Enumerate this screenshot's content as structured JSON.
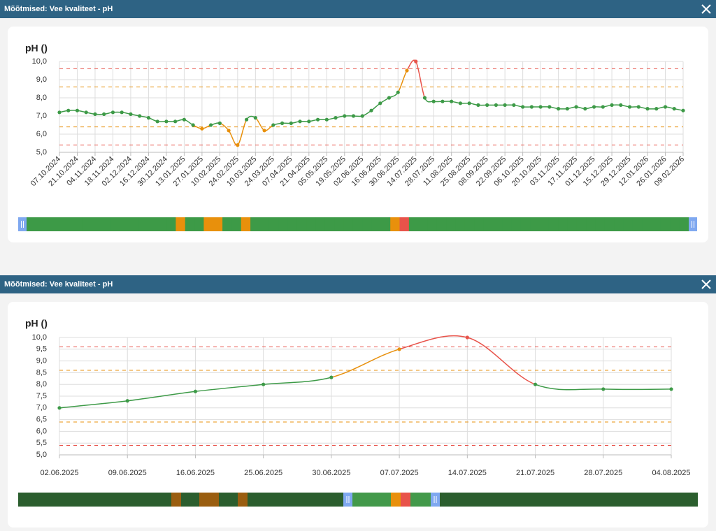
{
  "windows": [
    {
      "title": "Mõõtmised: Vee kvaliteet - pH"
    },
    {
      "title": "Mõõtmised: Vee kvaliteet - pH"
    }
  ],
  "chart_data": [
    {
      "type": "line",
      "title": "pH ()",
      "categories": [
        "07.10.2024",
        null,
        "21.10.2024",
        null,
        "04.11.2024",
        null,
        "18.11.2024",
        null,
        "02.12.2024",
        null,
        "16.12.2024",
        null,
        "30.12.2024",
        null,
        "13.01.2025",
        null,
        "27.01.2025",
        null,
        "10.02.2025",
        null,
        "24.02.2025",
        null,
        "10.03.2025",
        null,
        "24.03.2025",
        null,
        "07.04.2025",
        null,
        "21.04.2025",
        null,
        "05.05.2025",
        null,
        "19.05.2025",
        null,
        "02.06.2025",
        null,
        "16.06.2025",
        null,
        "30.06.2025",
        null,
        "14.07.2025",
        null,
        "28.07.2025",
        null,
        "11.08.2025",
        null,
        "25.08.2025",
        null,
        "08.09.2025",
        null,
        "22.09.2025",
        null,
        "06.10.2025",
        null,
        "20.10.2025",
        null,
        "03.11.2025",
        null,
        "17.11.2025",
        null,
        "01.12.2025",
        null,
        "15.12.2025",
        null,
        "29.12.2025",
        null,
        "12.01.2026",
        null,
        "26.01.2026",
        null,
        "09.02.2026"
      ],
      "values": [
        7.2,
        7.3,
        7.3,
        7.2,
        7.1,
        7.1,
        7.2,
        7.2,
        7.1,
        7.0,
        6.9,
        6.7,
        6.7,
        6.7,
        6.8,
        6.5,
        6.3,
        6.5,
        6.6,
        6.2,
        5.4,
        6.8,
        6.9,
        6.2,
        6.5,
        6.6,
        6.6,
        6.7,
        6.7,
        6.8,
        6.8,
        6.9,
        7.0,
        7.0,
        7.0,
        7.3,
        7.7,
        8.0,
        8.3,
        9.5,
        10.0,
        8.0,
        7.8,
        7.8,
        7.8,
        7.7,
        7.7,
        7.6,
        7.6,
        7.6,
        7.6,
        7.6,
        7.5,
        7.5,
        7.5,
        7.5,
        7.4,
        7.4,
        7.5,
        7.4,
        7.5,
        7.5,
        7.6,
        7.6,
        7.5,
        7.5,
        7.4,
        7.4,
        7.5,
        7.4,
        7.3
      ],
      "ylim": [
        5,
        10
      ],
      "yticks": [
        {
          "value": 5,
          "label": "5,0"
        },
        {
          "value": 6,
          "label": "6,0"
        },
        {
          "value": 7,
          "label": "7,0"
        },
        {
          "value": 8,
          "label": "8,0"
        },
        {
          "value": 9,
          "label": "9,0"
        },
        {
          "value": 10,
          "label": "10,0"
        }
      ],
      "thresholds": {
        "alarm": [
          5.4,
          9.6
        ],
        "warn": [
          6.4,
          8.6
        ]
      },
      "colors": {
        "ok": "#3d9a47",
        "warn": "#e8900c",
        "alarm": "#e8534a"
      },
      "grid": true
    },
    {
      "type": "line",
      "title": "pH ()",
      "categories": [
        "02.06.2025",
        "09.06.2025",
        "16.06.2025",
        "25.06.2025",
        "30.06.2025",
        "07.07.2025",
        "14.07.2025",
        "21.07.2025",
        "28.07.2025",
        "04.08.2025"
      ],
      "values": [
        7.0,
        7.3,
        7.7,
        8.0,
        8.3,
        9.5,
        10.0,
        8.0,
        7.8,
        7.8
      ],
      "ylim": [
        5,
        10
      ],
      "yticks": [
        {
          "value": 5,
          "label": "5,0"
        },
        {
          "value": 5.5,
          "label": "5,5"
        },
        {
          "value": 6,
          "label": "6,0"
        },
        {
          "value": 6.5,
          "label": "6,5"
        },
        {
          "value": 7,
          "label": "7,0"
        },
        {
          "value": 7.5,
          "label": "7,5"
        },
        {
          "value": 8,
          "label": "8,0"
        },
        {
          "value": 8.5,
          "label": "8,5"
        },
        {
          "value": 9,
          "label": "9,0"
        },
        {
          "value": 9.5,
          "label": "9,5"
        },
        {
          "value": 10,
          "label": "10,0"
        }
      ],
      "thresholds": {
        "alarm": [
          5.4,
          9.6
        ],
        "warn": [
          6.4,
          8.6
        ]
      },
      "colors": {
        "ok": "#3d9a47",
        "warn": "#e8900c",
        "alarm": "#e8534a"
      },
      "grid": true
    }
  ]
}
